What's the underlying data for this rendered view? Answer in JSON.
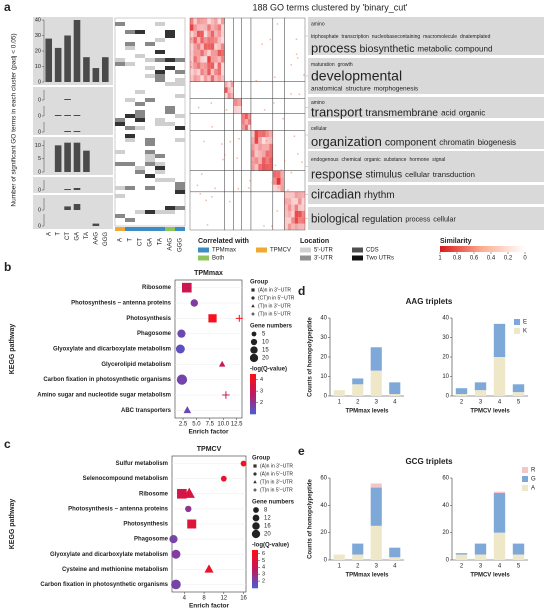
{
  "panel_labels": [
    "a",
    "b",
    "c",
    "d",
    "e"
  ],
  "panel_a": {
    "title": "188 GO terms clustered by 'binary_cut'",
    "y_label": "Number of significant GO terms in each cluster (padj < 0.05)",
    "categories": [
      "A",
      "T",
      "CT",
      "GA",
      "TA",
      "AAG",
      "GGG"
    ],
    "cluster_bars": [
      {
        "ylim": [
          0,
          40
        ],
        "yticks": [
          0,
          10,
          20,
          30,
          40
        ],
        "values": [
          28,
          22,
          30,
          40,
          16,
          9,
          16
        ]
      },
      {
        "ylim": [
          0,
          10
        ],
        "yticks": [
          0
        ],
        "values": [
          0,
          0,
          1,
          0,
          0,
          0,
          0
        ]
      },
      {
        "ylim": [
          0,
          10
        ],
        "yticks": [
          0
        ],
        "values": [
          0,
          1,
          1,
          1,
          0,
          0,
          0
        ]
      },
      {
        "ylim": [
          0,
          10
        ],
        "yticks": [
          0
        ],
        "values": [
          0,
          0,
          1,
          1,
          0,
          0,
          0
        ]
      },
      {
        "ylim": [
          0,
          12
        ],
        "yticks": [
          0,
          5,
          10
        ],
        "values": [
          0,
          10,
          11,
          11,
          8,
          0,
          0
        ]
      },
      {
        "ylim": [
          0,
          10
        ],
        "yticks": [
          0
        ],
        "values": [
          0,
          0,
          1,
          2,
          0,
          0,
          0
        ]
      },
      {
        "ylim": [
          0,
          10
        ],
        "yticks": [
          0
        ],
        "values": [
          0,
          0,
          3,
          5,
          0,
          0,
          0
        ]
      },
      {
        "ylim": [
          0,
          10
        ],
        "yticks": [
          0
        ],
        "values": [
          0,
          0,
          0,
          0,
          0,
          2,
          0
        ]
      }
    ],
    "word_clouds": [
      [
        [
          "amino"
        ],
        [
          "triphosphate",
          "transcription",
          "nucleobasecontaining",
          "macromolecule",
          "dnatemplated"
        ],
        [
          "process",
          "biosynthetic",
          "metabolic",
          "compound"
        ]
      ],
      [
        [
          "maturation",
          "growth"
        ],
        [
          "developmental"
        ],
        [
          "anatomical",
          "structure",
          "morphogenesis"
        ]
      ],
      [
        [
          "amino"
        ],
        [
          "transport",
          "transmembrane",
          "acid",
          "organic"
        ]
      ],
      [
        [
          "cellular"
        ],
        [
          "organization",
          "component",
          "chromatin",
          "biogenesis"
        ]
      ],
      [
        [
          "endogenous",
          "chemical",
          "organic",
          "substance",
          "hormone",
          "signal"
        ],
        [
          "response",
          "stimulus",
          "cellular",
          "transduction"
        ]
      ],
      [
        [
          "circadian",
          "rhythm"
        ]
      ],
      [
        [
          "biological",
          "regulation",
          "process",
          "cellular"
        ]
      ]
    ],
    "correlated_title": "Correlated with",
    "correlated_items": [
      {
        "label": "TPMmax",
        "color": "#3c8dc4"
      },
      {
        "label": "TPMCV",
        "color": "#f0a830"
      },
      {
        "label": "Both",
        "color": "#8fc45a"
      }
    ],
    "location_title": "Location",
    "location_items": [
      {
        "label": "5'-UTR",
        "color": "#d0d0d0"
      },
      {
        "label": "CDS",
        "color": "#505050"
      },
      {
        "label": "3'-UTR",
        "color": "#909090"
      },
      {
        "label": "Two UTRs",
        "color": "#111111"
      }
    ],
    "similarity_title": "Similarity",
    "similarity_ticks": [
      1,
      0.8,
      0.6,
      0.4,
      0.2,
      0
    ]
  },
  "chart_data": [
    {
      "type": "dot",
      "title": "TPMmax",
      "y_label": "KEGG pathway",
      "x_label": "Enrich factor",
      "categories": [
        "Ribosome",
        "Photosynthesis − antenna proteins",
        "Photosynthesis",
        "Phagosome",
        "Glyoxylate and dicarboxylate metabolism",
        "Glycerolipid metabolism",
        "Carbon fixation in photosynthetic organisms",
        "Amino sugar and nucleotide sugar metabolism",
        "ABC transporters"
      ],
      "xlim": [
        1,
        13.5
      ],
      "xticks": [
        2.5,
        {
          "value": 5,
          "label": "5.0"
        },
        7.5,
        {
          "value": 10,
          "label": "10.0"
        },
        12.5
      ],
      "group_title": "Group",
      "size_title": "Gene numbers",
      "color_title": "-log(Q-value)",
      "size_legend": [
        5,
        10,
        15,
        20
      ],
      "clim": [
        1,
        4.5
      ],
      "cticks": [
        2,
        3,
        4
      ],
      "colormap": [
        "#4b5bd6",
        "#c2185b",
        "#ff1010"
      ],
      "series": [
        {
          "name": "(A)n in 3'−UTR",
          "shape": "square",
          "y": [
            "Ribosome",
            "Photosynthesis"
          ],
          "x": [
            3.2,
            8
          ],
          "sizes": [
            12,
            8
          ],
          "colors": [
            3,
            4.2
          ]
        },
        {
          "name": "(CT)n in 5'−UTR",
          "shape": "circle",
          "y": [
            "Photosynthesis − antenna proteins",
            "Phagosome",
            "Glyoxylate and dicarboxylate metabolism",
            "Carbon fixation in photosynthetic organisms"
          ],
          "x": [
            4.6,
            2.2,
            2,
            2.3
          ],
          "sizes": [
            6,
            8,
            10,
            14
          ],
          "colors": [
            1.8,
            1.5,
            1.3,
            1.6
          ]
        },
        {
          "name": "(T)n in 3'−UTR",
          "shape": "triangle",
          "y": [
            "ABC transporters",
            "Glycerolipid metabolism"
          ],
          "x": [
            3.3,
            9.8
          ],
          "sizes": [
            5,
            3
          ],
          "colors": [
            1.5,
            3
          ]
        },
        {
          "name": "(T)n in 5'−UTR",
          "shape": "plus",
          "y": [
            "Photosynthesis",
            "Amino sugar and nucleotide sugar metabolism"
          ],
          "x": [
            13,
            10.5
          ],
          "sizes": [
            5,
            6
          ],
          "colors": [
            4.3,
            3
          ]
        }
      ]
    },
    {
      "type": "dot",
      "title": "TPMCV",
      "y_label": "KEGG pathway",
      "x_label": "Enrich factor",
      "categories": [
        "Sulfur metabolism",
        "Selenocompound metabolism",
        "Ribosome",
        "Photosynthesis − antenna proteins",
        "Photosynthesis",
        "Phagosome",
        "Glyoxylate and dicarboxylate metabolism",
        "Cysteine and methionine metabolism",
        "Carbon fixation in photosynthetic organisms"
      ],
      "xlim": [
        1.5,
        16.5
      ],
      "xticks": [
        4,
        8,
        12,
        16
      ],
      "group_title": "Group",
      "size_title": "Gene numbers",
      "color_title": "-log(Q-value)",
      "size_legend": [
        8,
        12,
        16,
        20
      ],
      "clim": [
        1,
        6.5
      ],
      "cticks": [
        2,
        3,
        4,
        5,
        6
      ],
      "colormap": [
        "#4b5bd6",
        "#c2185b",
        "#ff1010"
      ],
      "series": [
        {
          "name": "(A)n in 3'−UTR",
          "shape": "square",
          "y": [
            "Ribosome",
            "Photosynthesis"
          ],
          "x": [
            3.5,
            5.5
          ],
          "sizes": [
            12,
            10
          ],
          "colors": [
            4.5,
            5
          ]
        },
        {
          "name": "(A)n in 5'−UTR",
          "shape": "circle",
          "y": [
            "Sulfur metabolism",
            "Selenocompound metabolism",
            "Photosynthesis − antenna proteins",
            "Phagosome",
            "Glyoxylate and dicarboxylate metabolism",
            "Carbon fixation in photosynthetic organisms"
          ],
          "x": [
            16,
            12,
            4.8,
            1.8,
            2.3,
            2.3
          ],
          "sizes": [
            3,
            3,
            4,
            8,
            10,
            12
          ],
          "colors": [
            6,
            5.5,
            2.5,
            2,
            2.2,
            2
          ]
        },
        {
          "name": "(T)n in 3'−UTR",
          "shape": "triangle",
          "y": [
            "Ribosome",
            "Cysteine and methionine metabolism"
          ],
          "x": [
            5,
            9
          ],
          "sizes": [
            14,
            8
          ],
          "colors": [
            4.8,
            5.5
          ]
        },
        {
          "name": "(T)n in 5'−UTR",
          "shape": "plus",
          "y": [],
          "x": [],
          "sizes": [],
          "colors": []
        }
      ]
    },
    {
      "type": "stacked_bar",
      "title": "AAG triplets",
      "y_label": "Counts of homopolypeptide",
      "ylim": [
        0,
        40
      ],
      "yticks": [
        0,
        10,
        20,
        30,
        40
      ],
      "panels": [
        {
          "x_label": "TPMmax levels",
          "categories": [
            "1",
            "2",
            "3",
            "4"
          ],
          "series": [
            {
              "name": "K",
              "color": "#efe8c8",
              "values": [
                3,
                6,
                13,
                1
              ]
            },
            {
              "name": "E",
              "color": "#7ea8d8",
              "values": [
                0,
                3,
                12,
                6
              ]
            }
          ]
        },
        {
          "x_label": "TPMCV levels",
          "categories": [
            "2",
            "3",
            "4",
            "5"
          ],
          "series": [
            {
              "name": "K",
              "color": "#efe8c8",
              "values": [
                1,
                3,
                20,
                2
              ]
            },
            {
              "name": "E",
              "color": "#7ea8d8",
              "values": [
                3,
                4,
                17,
                4
              ]
            }
          ]
        }
      ]
    },
    {
      "type": "stacked_bar",
      "title": "GCG triplets",
      "y_label": "Counts of homopolypeptide",
      "ylim": [
        0,
        60
      ],
      "yticks": [
        0,
        20,
        40,
        60
      ],
      "panels": [
        {
          "x_label": "TPMmax levels",
          "categories": [
            "1",
            "2",
            "3",
            "4"
          ],
          "series": [
            {
              "name": "A",
              "color": "#efe8c8",
              "values": [
                4,
                4,
                25,
                2
              ]
            },
            {
              "name": "G",
              "color": "#7ea8d8",
              "values": [
                0,
                8,
                28,
                7
              ]
            },
            {
              "name": "R",
              "color": "#f5c6c9",
              "values": [
                0,
                0,
                3,
                0
              ]
            }
          ]
        },
        {
          "x_label": "TPMCV levels",
          "categories": [
            "2",
            "3",
            "4",
            "5"
          ],
          "series": [
            {
              "name": "A",
              "color": "#efe8c8",
              "values": [
                4,
                4,
                20,
                4
              ]
            },
            {
              "name": "G",
              "color": "#7ea8d8",
              "values": [
                1,
                8,
                29,
                8
              ]
            },
            {
              "name": "R",
              "color": "#f5c6c9",
              "values": [
                0,
                0,
                1,
                0
              ]
            }
          ]
        }
      ]
    }
  ]
}
